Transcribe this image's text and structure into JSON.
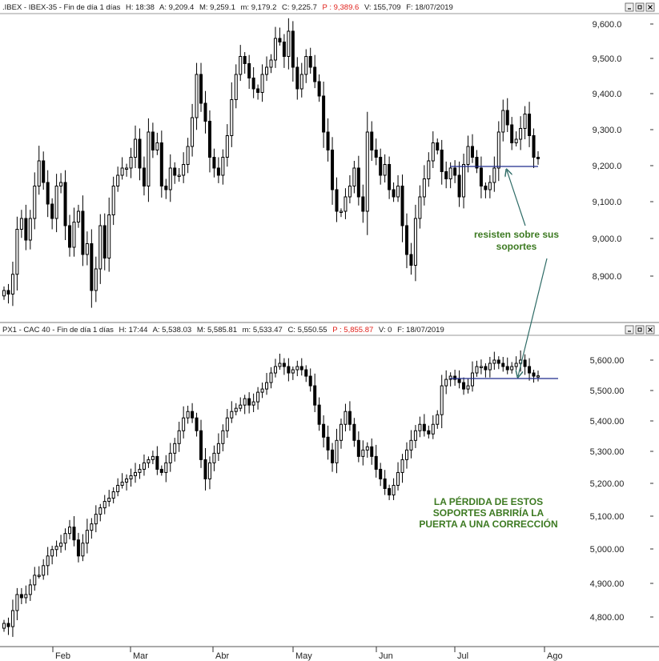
{
  "colors": {
    "candle": "#000000",
    "support_line": "#1f2a8c",
    "annotation_text": "#3d7a22",
    "arrow": "#2e6b66",
    "header_red": "#e0201a"
  },
  "window_buttons": [
    "minimize-button",
    "restore-button",
    "close-button"
  ],
  "panels": [
    {
      "header": {
        "symbol": ".IBEX - IBEX-35 - Fin de día 1 días",
        "h": "H: 18:38",
        "a": "A: 9,209.4",
        "m": "M: 9,259.1",
        "min": "m: 9,179.2",
        "c": "C: 9,225.7",
        "p": "P : 9,389.6",
        "v": "V: 155,709",
        "f": "F: 18/07/2019"
      }
    },
    {
      "header": {
        "symbol": "PX1 - CAC 40 - Fin de día 1 días",
        "h": "H: 17:44",
        "a": "A: 5,538.03",
        "m": "M: 5,585.81",
        "min": "m: 5,533.47",
        "c": "C: 5,550.55",
        "p": "P : 5,855.87",
        "v": "V: 0",
        "f": "F: 18/07/2019"
      }
    }
  ],
  "annotations": {
    "top": [
      "resisten sobre sus",
      "soportes"
    ],
    "bottom": [
      "LA PÉRDIDA DE ESTOS",
      "SOPORTES ABRIRÍA LA",
      "PUERTA A UNA CORRECCIÓN"
    ]
  },
  "chart_data": [
    {
      "type": "candlestick",
      "title": ".IBEX - IBEX-35",
      "yticks": [
        "9,600.0",
        "9,500.0",
        "9,400.0",
        "9,300.0",
        "9,200.0",
        "9,100.0",
        "9,000.0",
        "8,900.0"
      ],
      "ylim": [
        8840,
        9620
      ],
      "support_level": 9200,
      "closes": [
        8860,
        8850,
        8905,
        9030,
        9060,
        9000,
        9060,
        9150,
        9220,
        9160,
        9100,
        9060,
        9150,
        9160,
        9040,
        8980,
        9050,
        9080,
        8960,
        8990,
        8860,
        8920,
        9040,
        8950,
        9070,
        9150,
        9180,
        9200,
        9200,
        9230,
        9280,
        9200,
        9150,
        9300,
        9250,
        9270,
        9150,
        9140,
        9200,
        9180,
        9180,
        9210,
        9260,
        9340,
        9460,
        9380,
        9330,
        9230,
        9200,
        9180,
        9230,
        9290,
        9390,
        9460,
        9510,
        9490,
        9450,
        9420,
        9410,
        9460,
        9480,
        9500,
        9560,
        9550,
        9510,
        9580,
        9480,
        9420,
        9460,
        9510,
        9480,
        9440,
        9400,
        9300,
        9250,
        9140,
        9080,
        9080,
        9120,
        9150,
        9200,
        9120,
        9080,
        9300,
        9250,
        9230,
        9180,
        9210,
        9140,
        9120,
        9150,
        9040,
        8960,
        8930,
        9060,
        9120,
        9170,
        9220,
        9270,
        9250,
        9190,
        9170,
        9200,
        9180,
        9120,
        9210,
        9260,
        9230,
        9200,
        9150,
        9140,
        9160,
        9200,
        9300,
        9360,
        9320,
        9270,
        9280,
        9310,
        9350,
        9290,
        9230,
        9226
      ],
      "x_months": [
        "Feb",
        "Mar",
        "Abr",
        "May",
        "Jun",
        "Jul",
        "Ago"
      ]
    },
    {
      "type": "candlestick",
      "title": "PX1 - CAC 40",
      "yticks": [
        "5,600.00",
        "5,500.00",
        "5,400.00",
        "5,300.00",
        "5,200.00",
        "5,100.00",
        "5,000.00",
        "4,900.00",
        "4,800.00"
      ],
      "ylim": [
        4740,
        5640
      ],
      "support_level": 5538,
      "closes": [
        4780,
        4770,
        4820,
        4870,
        4860,
        4870,
        4900,
        4930,
        4930,
        4960,
        4990,
        5010,
        5020,
        5030,
        5060,
        5080,
        5040,
        4990,
        5030,
        5070,
        5090,
        5120,
        5140,
        5160,
        5170,
        5190,
        5210,
        5220,
        5230,
        5240,
        5250,
        5260,
        5280,
        5290,
        5300,
        5260,
        5250,
        5280,
        5310,
        5340,
        5380,
        5420,
        5440,
        5420,
        5380,
        5290,
        5230,
        5280,
        5310,
        5340,
        5380,
        5420,
        5440,
        5450,
        5460,
        5480,
        5460,
        5470,
        5500,
        5510,
        5530,
        5560,
        5580,
        5590,
        5580,
        5560,
        5570,
        5580,
        5570,
        5550,
        5520,
        5460,
        5400,
        5360,
        5320,
        5280,
        5350,
        5400,
        5440,
        5400,
        5350,
        5300,
        5320,
        5330,
        5300,
        5260,
        5230,
        5200,
        5180,
        5210,
        5250,
        5290,
        5320,
        5350,
        5380,
        5400,
        5380,
        5370,
        5400,
        5430,
        5520,
        5540,
        5550,
        5540,
        5530,
        5510,
        5520,
        5560,
        5580,
        5580,
        5570,
        5590,
        5600,
        5590,
        5580,
        5570,
        5580,
        5590,
        5600,
        5580,
        5560,
        5550,
        5551
      ],
      "x_months": [
        "Feb",
        "Mar",
        "Abr",
        "May",
        "Jun",
        "Jul",
        "Ago"
      ]
    }
  ]
}
